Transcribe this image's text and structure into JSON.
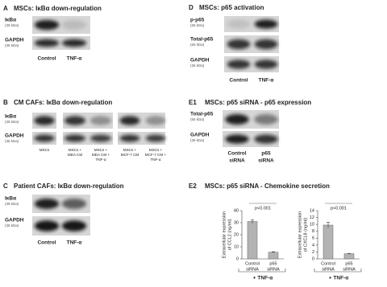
{
  "panels": [
    {
      "letter": "A",
      "title": "MSCs: IκBα down-regulation",
      "rows": [
        {
          "label": "IκBα",
          "kda": "(39 kDa)"
        },
        {
          "label": "GAPDH",
          "kda": "(36 kDa)"
        }
      ],
      "lanes": [
        [
          "Control"
        ],
        [
          "TNF-α"
        ]
      ]
    },
    {
      "letter": "B",
      "title": "CM CAFs: IκBα down-regulation",
      "rows": [
        {
          "label": "IκBα",
          "kda": "(39 kDa)"
        },
        {
          "label": "GAPDH",
          "kda": "(36 kDa)"
        }
      ],
      "lanes": [
        [
          "MSCs"
        ],
        [
          "MSCs +",
          "MDA CM"
        ],
        [
          "MSCs +",
          "MDA CM +",
          "TNF-α"
        ],
        [
          "MSCs +",
          "MCF-7 CM"
        ],
        [
          "MSCs +",
          "MCF-7 CM +",
          "TNF-α"
        ]
      ]
    },
    {
      "letter": "C",
      "title": "Patient CAFs: IκBα down-regulation",
      "rows": [
        {
          "label": "IκBα",
          "kda": "(39 kDa)"
        },
        {
          "label": "GAPDH",
          "kda": "(36 kDa)"
        }
      ],
      "lanes": [
        [
          "Control"
        ],
        [
          "TNF-α"
        ]
      ]
    },
    {
      "letter": "D",
      "title": "MSCs: p65 activation",
      "rows": [
        {
          "label": "p-p65",
          "kda": "(65 kDa)"
        },
        {
          "label": "Total-p65",
          "kda": "(65 kDa)"
        },
        {
          "label": "GAPDH",
          "kda": "(36 kDa)"
        }
      ],
      "lanes": [
        [
          "Control"
        ],
        [
          "TNF-α"
        ]
      ]
    },
    {
      "letter": "E1",
      "title": "MSCs: p65 siRNA - p65 expression",
      "rows": [
        {
          "label": "Total-p65",
          "kda": "(65 kDa)"
        },
        {
          "label": "GAPDH",
          "kda": "(36 kDa)"
        }
      ],
      "lanes": [
        [
          "Control",
          "siRNA"
        ],
        [
          "p65",
          "siRNA"
        ]
      ]
    },
    {
      "letter": "E2",
      "title": "MSCs: p65 siRNA - Chemokine secretion"
    }
  ],
  "chart_data": [
    {
      "type": "bar",
      "ylabel": [
        "Extracellular expression",
        "of CCL2 (ng/ml)"
      ],
      "categories": [
        [
          "Control",
          "siRNA"
        ],
        [
          "p65",
          "siRNA"
        ]
      ],
      "values": [
        31,
        5.5
      ],
      "errors": [
        1.5,
        0.4
      ],
      "color": "#b3b3b3",
      "ylim": [
        0,
        40
      ],
      "yticks": [
        0,
        10,
        20,
        30,
        40
      ],
      "annotation": "p<0.001",
      "group_label": "+ TNF-α"
    },
    {
      "type": "bar",
      "ylabel": [
        "Extracellular expression",
        "of CXCL8 (ng/ml)"
      ],
      "categories": [
        [
          "Control",
          "siRNA"
        ],
        [
          "p65",
          "siRNA"
        ]
      ],
      "values": [
        9.8,
        1.5
      ],
      "errors": [
        0.8,
        0.1
      ],
      "color": "#b3b3b3",
      "ylim": [
        0,
        14
      ],
      "yticks": [
        0,
        2,
        4,
        6,
        8,
        10,
        12,
        14
      ],
      "annotation": "p<0.001",
      "group_label": "+ TNF-α"
    }
  ]
}
